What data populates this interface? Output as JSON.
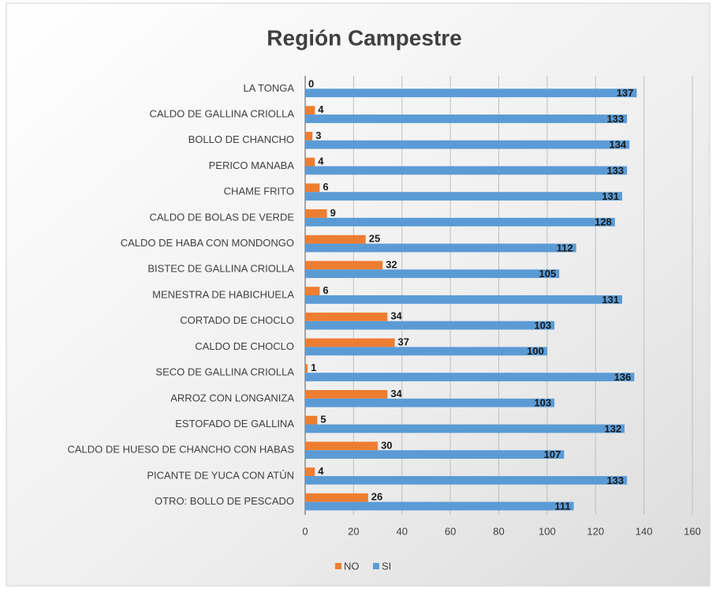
{
  "chart_data": {
    "type": "hbar",
    "title": "Región Campestre",
    "categories": [
      "LA TONGA",
      "CALDO DE GALLINA CRIOLLA",
      "BOLLO DE CHANCHO",
      "PERICO MANABA",
      "CHAME FRITO",
      "CALDO DE BOLAS DE VERDE",
      "CALDO DE HABA CON MONDONGO",
      "BISTEC DE GALLINA CRIOLLA",
      "MENESTRA DE HABICHUELA",
      "CORTADO DE CHOCLO",
      "CALDO DE CHOCLO",
      "SECO DE GALLINA CRIOLLA",
      "ARROZ CON LONGANIZA",
      "ESTOFADO DE GALLINA",
      "CALDO DE HUESO DE CHANCHO CON HABAS",
      "PICANTE DE YUCA CON ATÚN",
      "OTRO: BOLLO DE PESCADO"
    ],
    "series": [
      {
        "name": "NO",
        "color": "#ed7d31",
        "values": [
          0,
          4,
          3,
          4,
          6,
          9,
          25,
          32,
          6,
          34,
          37,
          1,
          34,
          5,
          30,
          4,
          26
        ]
      },
      {
        "name": "SI",
        "color": "#5b9bd5",
        "values": [
          137,
          133,
          134,
          133,
          131,
          128,
          112,
          105,
          131,
          103,
          100,
          136,
          103,
          132,
          107,
          133,
          111
        ]
      }
    ],
    "xlim": [
      0,
      160
    ],
    "xticks": [
      0,
      20,
      40,
      60,
      80,
      100,
      120,
      140,
      160
    ],
    "grid": true,
    "legend": "bottom"
  }
}
